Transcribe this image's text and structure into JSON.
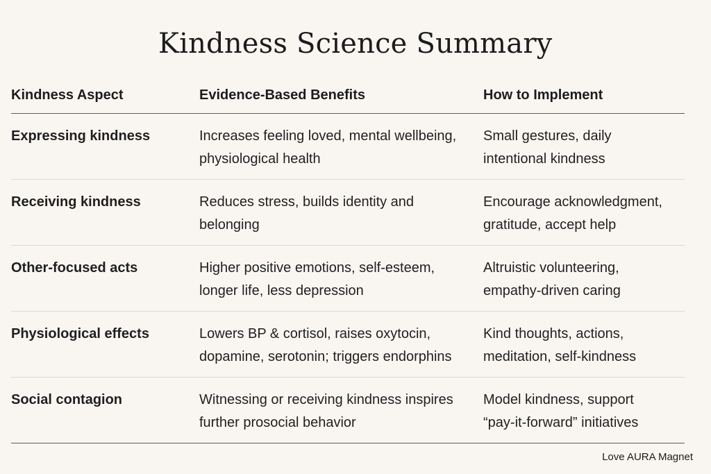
{
  "title": "Kindness Science Summary",
  "headers": {
    "aspect": "Kindness Aspect",
    "benefits": "Evidence-Based Benefits",
    "implement": "How to Implement"
  },
  "rows": [
    {
      "aspect": "Expressing kindness",
      "benefits": [
        "Increases feeling loved, mental wellbeing,",
        "physiological health"
      ],
      "implement": [
        "Small gestures, daily",
        "intentional kindness"
      ]
    },
    {
      "aspect": "Receiving kindness",
      "benefits": [
        "Reduces stress, builds identity and",
        "belonging"
      ],
      "implement": [
        "Encourage acknowledgment,",
        "gratitude, accept help"
      ]
    },
    {
      "aspect": "Other-focused acts",
      "benefits": [
        "Higher positive emotions, self-esteem,",
        "longer life, less depression"
      ],
      "implement": [
        "Altruistic volunteering,",
        "empathy-driven caring"
      ]
    },
    {
      "aspect": "Physiological effects",
      "benefits": [
        "Lowers BP & cortisol, raises oxytocin,",
        "dopamine, serotonin; triggers endorphins"
      ],
      "implement": [
        "Kind thoughts, actions,",
        "meditation, self-kindness"
      ]
    },
    {
      "aspect": "Social contagion",
      "benefits": [
        "Witnessing or receiving kindness inspires",
        "further prosocial behavior"
      ],
      "implement": [
        "Model kindness, support",
        "“pay-it-forward” initiatives"
      ]
    }
  ],
  "footer": "Love AURA Magnet"
}
